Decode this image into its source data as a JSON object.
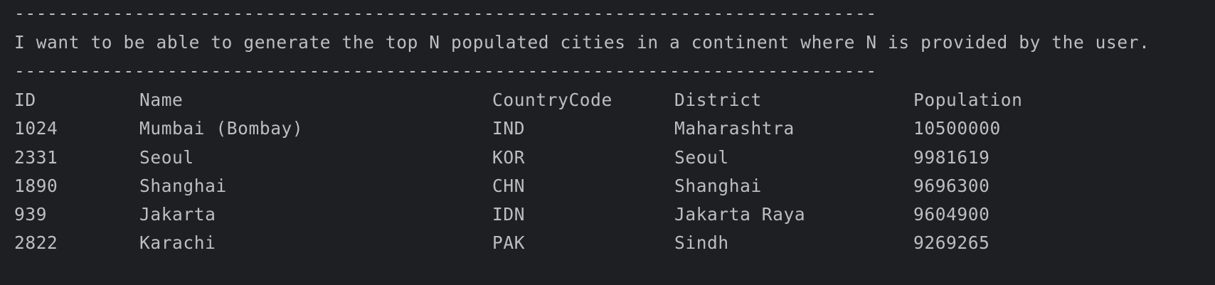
{
  "console": {
    "separator_top": "-------------------------------------------------------------------------------",
    "message": "I want to be able to generate the top N populated cities in a continent where N is provided by the user.",
    "separator_bottom": "-------------------------------------------------------------------------------"
  },
  "table": {
    "headers": {
      "id": "ID",
      "name": "Name",
      "country_code": "CountryCode",
      "district": "District",
      "population": "Population"
    },
    "rows": [
      {
        "id": "1024",
        "name": "Mumbai (Bombay)",
        "country_code": "IND",
        "district": "Maharashtra",
        "population": "10500000"
      },
      {
        "id": "2331",
        "name": "Seoul",
        "country_code": "KOR",
        "district": "Seoul",
        "population": "9981619"
      },
      {
        "id": "1890",
        "name": "Shanghai",
        "country_code": "CHN",
        "district": "Shanghai",
        "population": "9696300"
      },
      {
        "id": "939",
        "name": "Jakarta",
        "country_code": "IDN",
        "district": "Jakarta Raya",
        "population": "9604900"
      },
      {
        "id": "2822",
        "name": "Karachi",
        "country_code": "PAK",
        "district": "Sindh",
        "population": "9269265"
      }
    ]
  },
  "colors": {
    "background": "#1e1f22",
    "text": "#bcbec4"
  }
}
